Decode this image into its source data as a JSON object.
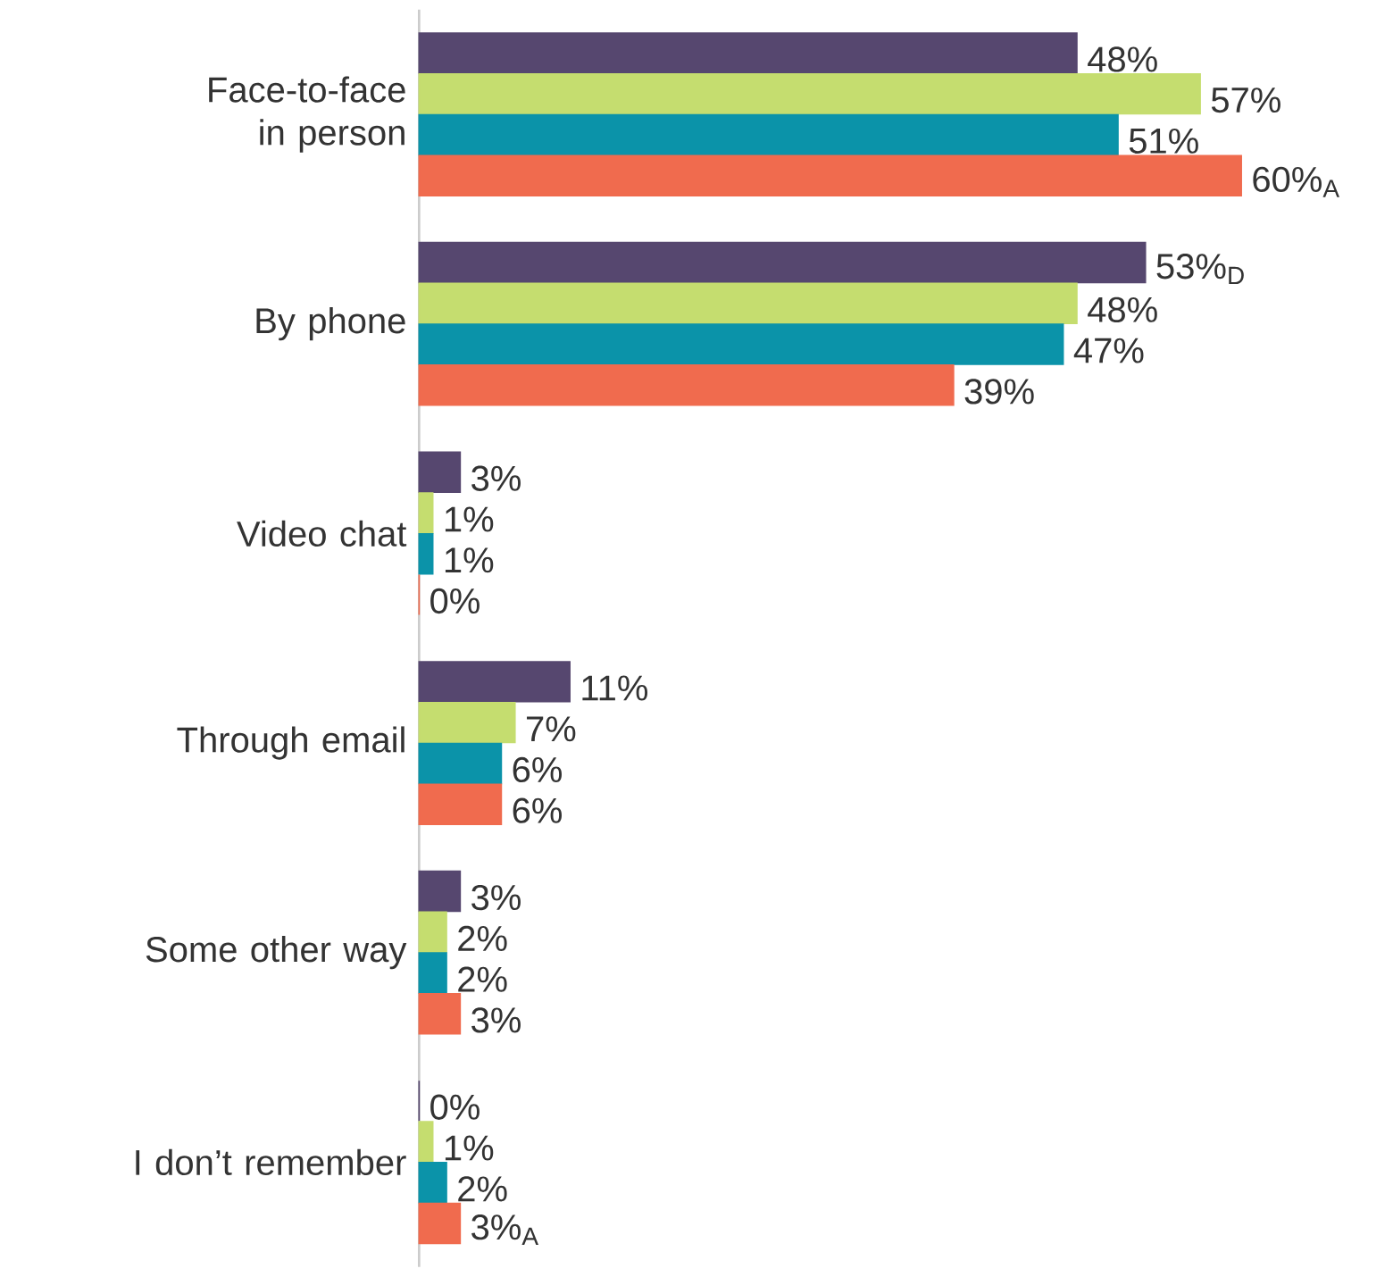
{
  "chart_data": {
    "type": "bar",
    "orientation": "horizontal",
    "categories": [
      "Face-to-face in person",
      "By phone",
      "Video chat",
      "Through email",
      "Some other way",
      "I don’t remember"
    ],
    "series": [
      {
        "color": "#56476f",
        "values": [
          48,
          53,
          3,
          11,
          3,
          0
        ],
        "value_labels": [
          "48%",
          "53%$_{D}$",
          "3%",
          "11%",
          "3%",
          "0%"
        ]
      },
      {
        "color": "#c5dd6f",
        "values": [
          57,
          48,
          1,
          7,
          2,
          1
        ],
        "value_labels": [
          "57%",
          "48%",
          "1%",
          "7%",
          "2%",
          "1%"
        ]
      },
      {
        "color": "#0b93a9",
        "values": [
          51,
          47,
          1,
          6,
          2,
          2
        ],
        "value_labels": [
          "51%",
          "47%",
          "1%",
          "6%",
          "2%",
          "2%"
        ]
      },
      {
        "color": "#f06b4e",
        "values": [
          60,
          39,
          0,
          6,
          3,
          3
        ],
        "value_labels": [
          "60%$_{A}$",
          "39%",
          "0%",
          "6%",
          "3%",
          "3%$_{A}$"
        ]
      }
    ],
    "tick_labels": "y"
  }
}
